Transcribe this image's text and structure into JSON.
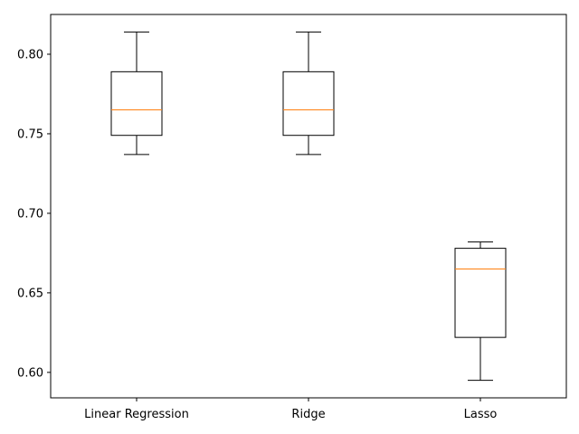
{
  "chart_data": {
    "type": "box",
    "title": "",
    "xlabel": "",
    "ylabel": "",
    "categories": [
      "Linear Regression",
      "Ridge",
      "Lasso"
    ],
    "boxes": [
      {
        "name": "Linear Regression",
        "whisker_low": 0.737,
        "q1": 0.749,
        "median": 0.765,
        "q3": 0.789,
        "whisker_high": 0.814
      },
      {
        "name": "Ridge",
        "whisker_low": 0.737,
        "q1": 0.749,
        "median": 0.765,
        "q3": 0.789,
        "whisker_high": 0.814
      },
      {
        "name": "Lasso",
        "whisker_low": 0.595,
        "q1": 0.622,
        "median": 0.665,
        "q3": 0.678,
        "whisker_high": 0.682
      }
    ],
    "yticks": [
      "0.60",
      "0.65",
      "0.70",
      "0.75",
      "0.80"
    ],
    "ylim": [
      0.584,
      0.825
    ],
    "grid": false,
    "colors": {
      "box": "#000000",
      "median": "#ff7f0e",
      "background": "#ffffff"
    }
  }
}
